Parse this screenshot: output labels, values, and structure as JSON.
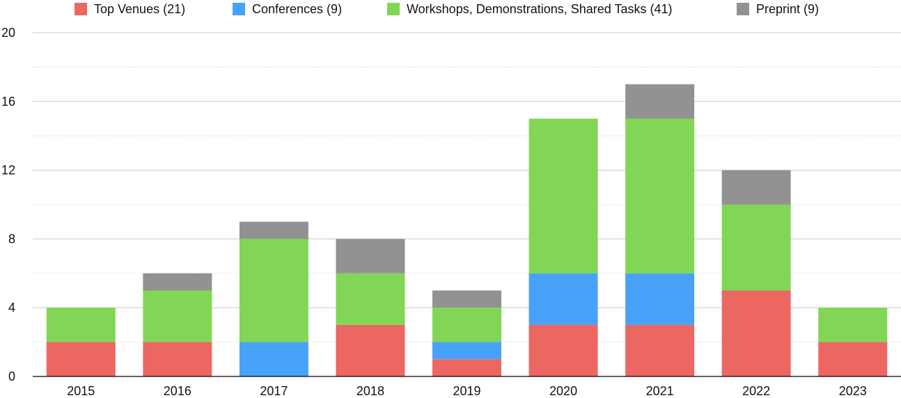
{
  "chart_data": {
    "type": "bar",
    "stacked": true,
    "title": "",
    "xlabel": "",
    "ylabel": "",
    "categories": [
      "2015",
      "2016",
      "2017",
      "2018",
      "2019",
      "2020",
      "2021",
      "2022",
      "2023"
    ],
    "series": [
      {
        "name": "Top Venues (21)",
        "color": "#ec6762",
        "values": [
          2,
          2,
          0,
          3,
          1,
          3,
          3,
          5,
          2
        ]
      },
      {
        "name": "Conferences (9)",
        "color": "#48a2f9",
        "values": [
          0,
          0,
          2,
          0,
          1,
          3,
          3,
          0,
          0
        ]
      },
      {
        "name": "Workshops, Demonstrations, Shared Tasks (41)",
        "color": "#82d655",
        "values": [
          2,
          3,
          6,
          3,
          2,
          9,
          9,
          5,
          2
        ]
      },
      {
        "name": "Preprint (9)",
        "color": "#929292",
        "values": [
          0,
          1,
          1,
          2,
          1,
          0,
          2,
          2,
          0
        ]
      }
    ],
    "ylim": [
      0,
      20
    ],
    "y_ticks": [
      "0",
      "4",
      "8",
      "12",
      "16",
      "20"
    ],
    "grid": true,
    "legend_position": "top"
  }
}
